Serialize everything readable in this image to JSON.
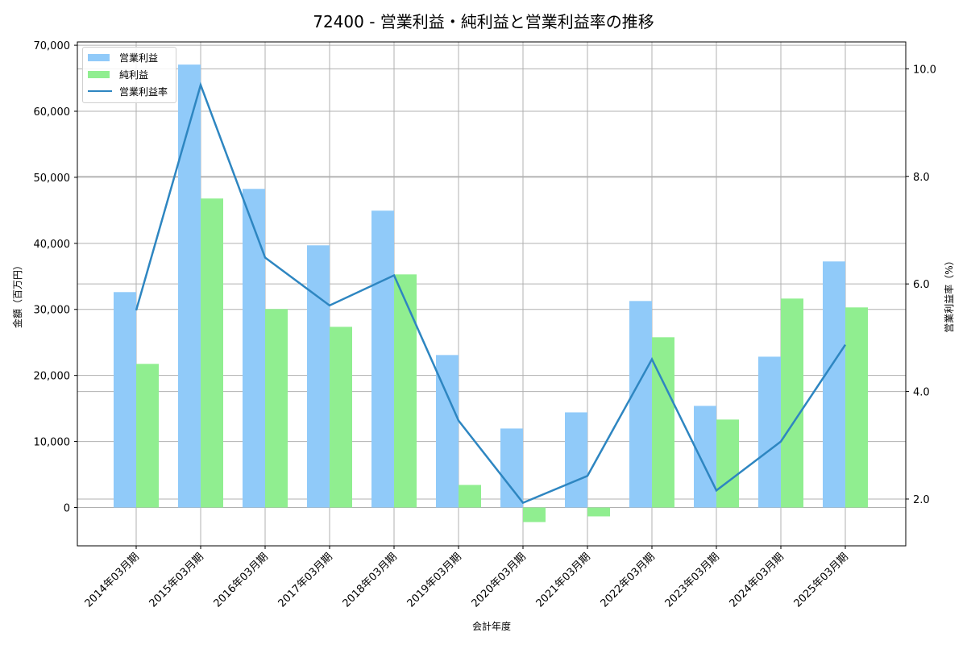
{
  "title": "72400 - 営業利益・純利益と営業利益率の推移",
  "colors": {
    "operating_profit": "#90CAF9",
    "net_profit": "#90EE90",
    "operating_margin": "#2E86C1",
    "grid": "#b0b0b0"
  },
  "chart_data": {
    "type": "bar",
    "title": "72400 - 営業利益・純利益と営業利益率の推移",
    "xlabel": "会計年度",
    "ylabel": "金額（百万円）",
    "y2label": "営業利益率（%）",
    "categories": [
      "2014年03月期",
      "2015年03月期",
      "2016年03月期",
      "2017年03月期",
      "2018年03月期",
      "2019年03月期",
      "2020年03月期",
      "2021年03月期",
      "2022年03月期",
      "2023年03月期",
      "2024年03月期",
      "2025年03月期"
    ],
    "series": [
      {
        "name": "営業利益",
        "type": "bar",
        "axis": "left",
        "color": "#90CAF9",
        "values": [
          32620,
          67070,
          48250,
          39700,
          44950,
          23090,
          11970,
          14410,
          31270,
          15390,
          22840,
          37260
        ]
      },
      {
        "name": "純利益",
        "type": "bar",
        "axis": "left",
        "color": "#90EE90",
        "values": [
          21750,
          46790,
          30050,
          27360,
          35300,
          3420,
          -2200,
          -1340,
          25780,
          13320,
          31640,
          30300
        ]
      },
      {
        "name": "営業利益率",
        "type": "line",
        "axis": "right",
        "color": "#2E86C1",
        "values": [
          5.51,
          9.7,
          6.49,
          5.6,
          6.16,
          3.46,
          1.93,
          2.43,
          4.6,
          2.16,
          3.07,
          4.87
        ]
      }
    ],
    "ylim": [
      -5800,
      70500
    ],
    "y2lim": [
      1.13,
      10.5
    ],
    "yticks": [
      0,
      10000,
      20000,
      30000,
      40000,
      50000,
      60000,
      70000
    ],
    "ytick_labels": [
      "0",
      "10,000",
      "20,000",
      "30,000",
      "40,000",
      "50,000",
      "60,000",
      "70,000"
    ],
    "y2ticks": [
      2.0,
      4.0,
      6.0,
      8.0,
      10.0
    ],
    "y2tick_labels": [
      "2.0",
      "4.0",
      "6.0",
      "8.0",
      "10.0"
    ],
    "grid": true,
    "legend_position": "upper left"
  },
  "legend": {
    "items": [
      {
        "label": "営業利益"
      },
      {
        "label": "純利益"
      },
      {
        "label": "営業利益率"
      }
    ]
  }
}
